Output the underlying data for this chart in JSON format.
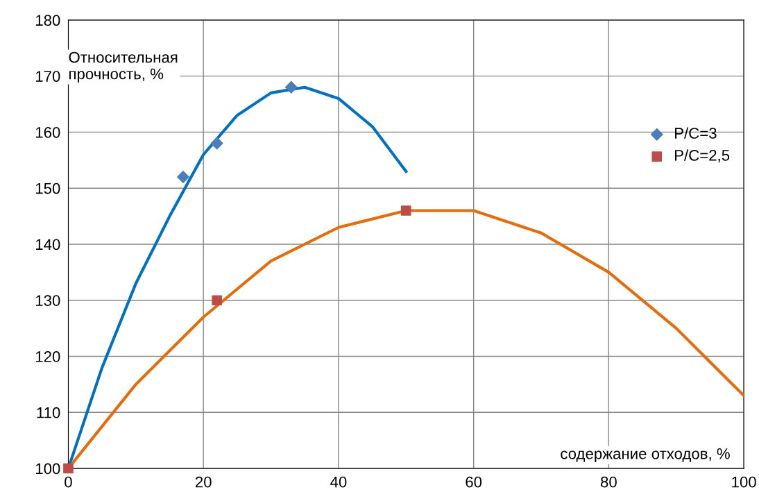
{
  "chart_data": {
    "type": "scatter",
    "xlabel": "содержание отходов, %",
    "ylabel": "Относительная\nпрочность, %",
    "xlim": [
      0,
      100
    ],
    "ylim": [
      100,
      180
    ],
    "xticks": [
      0,
      20,
      40,
      60,
      80,
      100
    ],
    "yticks": [
      100,
      110,
      120,
      130,
      140,
      150,
      160,
      170,
      180
    ],
    "grid": true,
    "legend": "right",
    "series": [
      {
        "name": "Р/С=3",
        "marker": "diamond",
        "color": "#4a7ebb",
        "x": [
          17,
          22,
          33
        ],
        "values": [
          152,
          158,
          168
        ]
      },
      {
        "name": "Р/С=2,5",
        "marker": "square",
        "color": "#be4b48",
        "x": [
          0,
          22,
          50
        ],
        "values": [
          100,
          130,
          146
        ]
      },
      {
        "type": "line",
        "color": "#0070c0",
        "x": [
          0,
          5,
          10,
          15,
          20,
          25,
          30,
          35,
          40,
          45,
          50
        ],
        "values": [
          100,
          118,
          133,
          145,
          156,
          163,
          167,
          168,
          166,
          161,
          153
        ]
      },
      {
        "type": "line",
        "color": "#e46c0a",
        "x": [
          0,
          10,
          20,
          30,
          40,
          50,
          60,
          70,
          80,
          90,
          100
        ],
        "values": [
          100,
          115,
          127,
          137,
          143,
          146,
          146,
          142,
          135,
          125,
          113
        ]
      }
    ]
  }
}
